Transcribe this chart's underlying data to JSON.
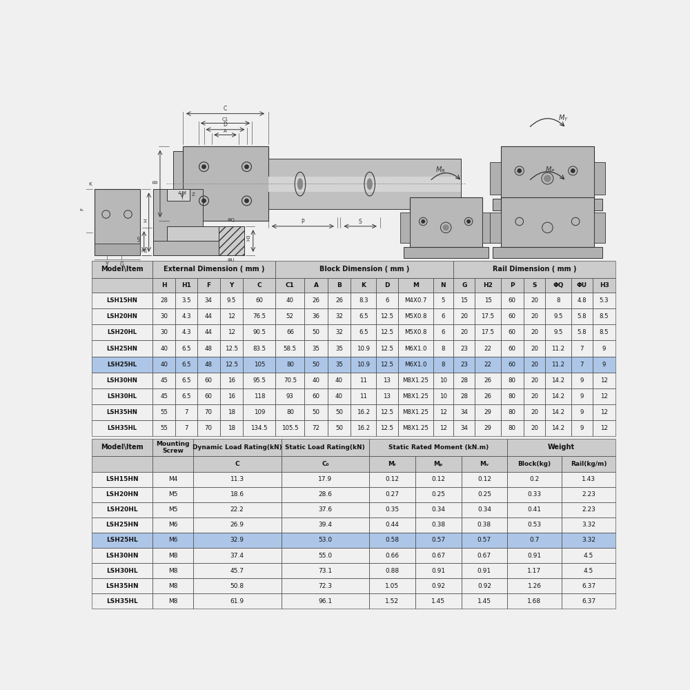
{
  "bg_color": "#f0f0f0",
  "table_border_color": "#666666",
  "highlight_row_color": "#adc6e8",
  "header_bg_color": "#cccccc",
  "text_color": "#111111",
  "table1_headers_sub": [
    "",
    "H",
    "H1",
    "F",
    "Y",
    "C",
    "C1",
    "A",
    "B",
    "K",
    "D",
    "M",
    "N",
    "G",
    "H2",
    "P",
    "S",
    "ΦQ",
    "ΦU",
    "H3"
  ],
  "table1_rows": [
    [
      "LSH15HN",
      "28",
      "3.5",
      "34",
      "9.5",
      "60",
      "40",
      "26",
      "26",
      "8.3",
      "6",
      "M4X0.7",
      "5",
      "15",
      "15",
      "60",
      "20",
      "8",
      "4.8",
      "5.3"
    ],
    [
      "LSH20HN",
      "30",
      "4.3",
      "44",
      "12",
      "76.5",
      "52",
      "36",
      "32",
      "6.5",
      "12.5",
      "M5X0.8",
      "6",
      "20",
      "17.5",
      "60",
      "20",
      "9.5",
      "5.8",
      "8.5"
    ],
    [
      "LSH20HL",
      "30",
      "4.3",
      "44",
      "12",
      "90.5",
      "66",
      "50",
      "32",
      "6.5",
      "12.5",
      "M5X0.8",
      "6",
      "20",
      "17.5",
      "60",
      "20",
      "9.5",
      "5.8",
      "8.5"
    ],
    [
      "LSH25HN",
      "40",
      "6.5",
      "48",
      "12.5",
      "83.5",
      "58.5",
      "35",
      "35",
      "10.9",
      "12.5",
      "M6X1.0",
      "8",
      "23",
      "22",
      "60",
      "20",
      "11.2",
      "7",
      "9"
    ],
    [
      "LSH25HL",
      "40",
      "6.5",
      "48",
      "12.5",
      "105",
      "80",
      "50",
      "35",
      "10.9",
      "12.5",
      "M6X1.0",
      "8",
      "23",
      "22",
      "60",
      "20",
      "11.2",
      "7",
      "9"
    ],
    [
      "LSH30HN",
      "45",
      "6.5",
      "60",
      "16",
      "95.5",
      "70.5",
      "40",
      "40",
      "11",
      "13",
      "M8X1.25",
      "10",
      "28",
      "26",
      "80",
      "20",
      "14.2",
      "9",
      "12"
    ],
    [
      "LSH30HL",
      "45",
      "6.5",
      "60",
      "16",
      "118",
      "93",
      "60",
      "40",
      "11",
      "13",
      "M8X1.25",
      "10",
      "28",
      "26",
      "80",
      "20",
      "14.2",
      "9",
      "12"
    ],
    [
      "LSH35HN",
      "55",
      "7",
      "70",
      "18",
      "109",
      "80",
      "50",
      "50",
      "16.2",
      "12.5",
      "M8X1.25",
      "12",
      "34",
      "29",
      "80",
      "20",
      "14.2",
      "9",
      "12"
    ],
    [
      "LSH35HL",
      "55",
      "7",
      "70",
      "18",
      "134.5",
      "105.5",
      "72",
      "50",
      "16.2",
      "12.5",
      "M8X1.25",
      "12",
      "34",
      "29",
      "80",
      "20",
      "14.2",
      "9",
      "12"
    ]
  ],
  "table1_highlight_row": 4,
  "table2_rows": [
    [
      "LSH15HN",
      "M4",
      "11.3",
      "17.9",
      "0.12",
      "0.12",
      "0.12",
      "0.2",
      "1.43"
    ],
    [
      "LSH20HN",
      "M5",
      "18.6",
      "28.6",
      "0.27",
      "0.25",
      "0.25",
      "0.33",
      "2.23"
    ],
    [
      "LSH20HL",
      "M5",
      "22.2",
      "37.6",
      "0.35",
      "0.34",
      "0.34",
      "0.41",
      "2.23"
    ],
    [
      "LSH25HN",
      "M6",
      "26.9",
      "39.4",
      "0.44",
      "0.38",
      "0.38",
      "0.53",
      "3.32"
    ],
    [
      "LSH25HL",
      "M6",
      "32.9",
      "53.0",
      "0.58",
      "0.57",
      "0.57",
      "0.7",
      "3.32"
    ],
    [
      "LSH30HN",
      "M8",
      "37.4",
      "55.0",
      "0.66",
      "0.67",
      "0.67",
      "0.91",
      "4.5"
    ],
    [
      "LSH30HL",
      "M8",
      "45.7",
      "73.1",
      "0.88",
      "0.91",
      "0.91",
      "1.17",
      "4.5"
    ],
    [
      "LSH35HN",
      "M8",
      "50.8",
      "72.3",
      "1.05",
      "0.92",
      "0.92",
      "1.26",
      "6.37"
    ],
    [
      "LSH35HL",
      "M8",
      "61.9",
      "96.1",
      "1.52",
      "1.45",
      "1.45",
      "1.68",
      "6.37"
    ]
  ],
  "table2_highlight_row": 4,
  "draw_color": "#333333",
  "draw_face": "#d8d8d8",
  "draw_face_dark": "#b8b8b8",
  "draw_face_light": "#e8e8e8"
}
